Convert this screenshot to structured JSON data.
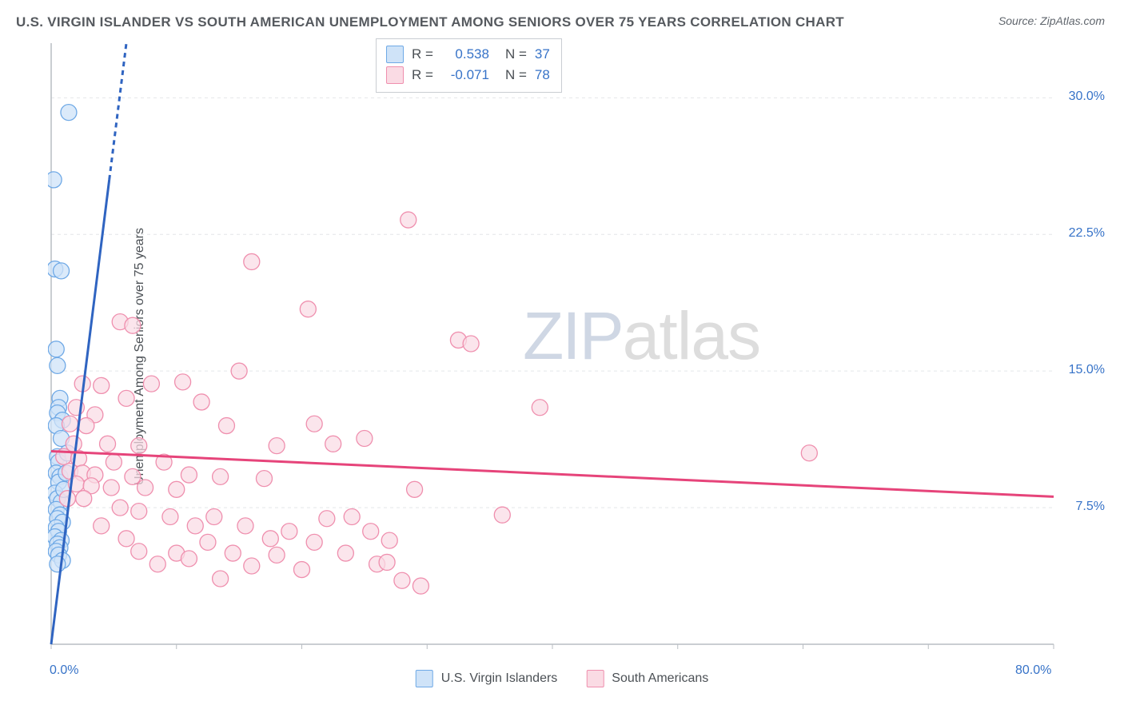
{
  "title": "U.S. VIRGIN ISLANDER VS SOUTH AMERICAN UNEMPLOYMENT AMONG SENIORS OVER 75 YEARS CORRELATION CHART",
  "source": "Source: ZipAtlas.com",
  "ylabel": "Unemployment Among Seniors over 75 years",
  "watermark": {
    "part1": "ZIP",
    "part2": "atlas"
  },
  "chart": {
    "type": "scatter",
    "background_color": "#ffffff",
    "grid_color": "#e4e6e9",
    "axis_color": "#b9bec3",
    "title_fontsize": 17,
    "label_fontsize": 16,
    "tick_fontsize": 16,
    "tick_font_color": "#3773c8",
    "marker_radius": 10,
    "marker_stroke_width": 1.3,
    "trend_line_width": 3,
    "x_domain": [
      0,
      80
    ],
    "y_domain": [
      0,
      33
    ],
    "x_ticks": [
      0,
      10,
      20,
      30,
      40,
      50,
      60,
      70,
      80
    ],
    "x_tick_labels": {
      "0": "0.0%",
      "80": "80.0%"
    },
    "y_ticks": [
      7.5,
      15.0,
      22.5,
      30.0
    ],
    "y_tick_labels": [
      "7.5%",
      "15.0%",
      "22.5%",
      "30.0%"
    ],
    "legend_top": {
      "rows": [
        {
          "swatch_fill": "#cfe3f8",
          "swatch_stroke": "#6fa9e6",
          "r_label": "R =",
          "r_value": "0.538",
          "n_label": "N =",
          "n_value": "37"
        },
        {
          "swatch_fill": "#fadbe4",
          "swatch_stroke": "#ef8fae",
          "r_label": "R =",
          "r_value": "-0.071",
          "n_label": "N =",
          "n_value": "78"
        }
      ]
    },
    "legend_bottom": [
      {
        "swatch_fill": "#cfe3f8",
        "swatch_stroke": "#6fa9e6",
        "label": "U.S. Virgin Islanders"
      },
      {
        "swatch_fill": "#fadbe4",
        "swatch_stroke": "#ef8fae",
        "label": "South Americans"
      }
    ],
    "series": [
      {
        "name": "U.S. Virgin Islanders",
        "marker_fill": "#cfe3f8",
        "marker_stroke": "#6fa9e6",
        "marker_opacity": 0.75,
        "trend_color": "#2f64c1",
        "trend": {
          "x1": 0,
          "y1": 0,
          "x2": 6,
          "y2": 33
        },
        "trend_dash_after_y": 25.5,
        "points": [
          [
            1.4,
            29.2
          ],
          [
            0.2,
            25.5
          ],
          [
            0.3,
            20.6
          ],
          [
            0.8,
            20.5
          ],
          [
            0.4,
            16.2
          ],
          [
            0.5,
            15.3
          ],
          [
            0.7,
            13.5
          ],
          [
            0.6,
            13.0
          ],
          [
            0.5,
            12.7
          ],
          [
            0.9,
            12.3
          ],
          [
            0.4,
            12.0
          ],
          [
            0.8,
            11.3
          ],
          [
            0.5,
            10.3
          ],
          [
            0.6,
            10.0
          ],
          [
            0.4,
            9.4
          ],
          [
            0.7,
            9.2
          ],
          [
            0.6,
            8.9
          ],
          [
            0.3,
            8.3
          ],
          [
            0.5,
            8.0
          ],
          [
            0.8,
            7.8
          ],
          [
            0.4,
            7.4
          ],
          [
            0.7,
            7.1
          ],
          [
            0.5,
            6.9
          ],
          [
            0.9,
            6.7
          ],
          [
            0.4,
            6.4
          ],
          [
            0.6,
            6.2
          ],
          [
            0.3,
            5.9
          ],
          [
            0.8,
            5.7
          ],
          [
            0.5,
            5.5
          ],
          [
            0.7,
            5.3
          ],
          [
            0.4,
            5.1
          ],
          [
            0.6,
            4.9
          ],
          [
            0.9,
            4.6
          ],
          [
            0.5,
            4.4
          ],
          [
            1.2,
            9.4
          ],
          [
            1.0,
            8.5
          ],
          [
            1.3,
            10.5
          ]
        ]
      },
      {
        "name": "South Americans",
        "marker_fill": "#fadbe4",
        "marker_stroke": "#ef8fae",
        "marker_opacity": 0.72,
        "trend_color": "#e6447a",
        "trend": {
          "x1": 0,
          "y1": 10.6,
          "x2": 80,
          "y2": 8.1
        },
        "points": [
          [
            28.5,
            23.3
          ],
          [
            16.0,
            21.0
          ],
          [
            5.5,
            17.7
          ],
          [
            6.5,
            17.5
          ],
          [
            20.5,
            18.4
          ],
          [
            2.5,
            14.3
          ],
          [
            4.0,
            14.2
          ],
          [
            8.0,
            14.3
          ],
          [
            10.5,
            14.4
          ],
          [
            15.0,
            15.0
          ],
          [
            32.5,
            16.7
          ],
          [
            33.5,
            16.5
          ],
          [
            6.0,
            13.5
          ],
          [
            12.0,
            13.3
          ],
          [
            2.0,
            13.0
          ],
          [
            3.5,
            12.6
          ],
          [
            1.5,
            12.1
          ],
          [
            2.8,
            12.0
          ],
          [
            14.0,
            12.0
          ],
          [
            21.0,
            12.1
          ],
          [
            25.0,
            11.3
          ],
          [
            39.0,
            13.0
          ],
          [
            1.8,
            11.0
          ],
          [
            4.5,
            11.0
          ],
          [
            7.0,
            10.9
          ],
          [
            18.0,
            10.9
          ],
          [
            22.5,
            11.0
          ],
          [
            1.0,
            10.3
          ],
          [
            2.2,
            10.2
          ],
          [
            5.0,
            10.0
          ],
          [
            9.0,
            10.0
          ],
          [
            1.5,
            9.5
          ],
          [
            2.5,
            9.4
          ],
          [
            3.5,
            9.3
          ],
          [
            6.5,
            9.2
          ],
          [
            11.0,
            9.3
          ],
          [
            13.5,
            9.2
          ],
          [
            17.0,
            9.1
          ],
          [
            60.5,
            10.5
          ],
          [
            2.0,
            8.8
          ],
          [
            3.2,
            8.7
          ],
          [
            4.8,
            8.6
          ],
          [
            7.5,
            8.6
          ],
          [
            10.0,
            8.5
          ],
          [
            29.0,
            8.5
          ],
          [
            1.3,
            8.0
          ],
          [
            2.6,
            8.0
          ],
          [
            5.5,
            7.5
          ],
          [
            7.0,
            7.3
          ],
          [
            9.5,
            7.0
          ],
          [
            13.0,
            7.0
          ],
          [
            22.0,
            6.9
          ],
          [
            24.0,
            7.0
          ],
          [
            36.0,
            7.1
          ],
          [
            4.0,
            6.5
          ],
          [
            11.5,
            6.5
          ],
          [
            15.5,
            6.5
          ],
          [
            19.0,
            6.2
          ],
          [
            25.5,
            6.2
          ],
          [
            6.0,
            5.8
          ],
          [
            12.5,
            5.6
          ],
          [
            17.5,
            5.8
          ],
          [
            21.0,
            5.6
          ],
          [
            27.0,
            5.7
          ],
          [
            7.0,
            5.1
          ],
          [
            10.0,
            5.0
          ],
          [
            14.5,
            5.0
          ],
          [
            23.5,
            5.0
          ],
          [
            8.5,
            4.4
          ],
          [
            16.0,
            4.3
          ],
          [
            20.0,
            4.1
          ],
          [
            26.0,
            4.4
          ],
          [
            26.8,
            4.5
          ],
          [
            13.5,
            3.6
          ],
          [
            28.0,
            3.5
          ],
          [
            29.5,
            3.2
          ],
          [
            11.0,
            4.7
          ],
          [
            18.0,
            4.9
          ]
        ]
      }
    ]
  }
}
